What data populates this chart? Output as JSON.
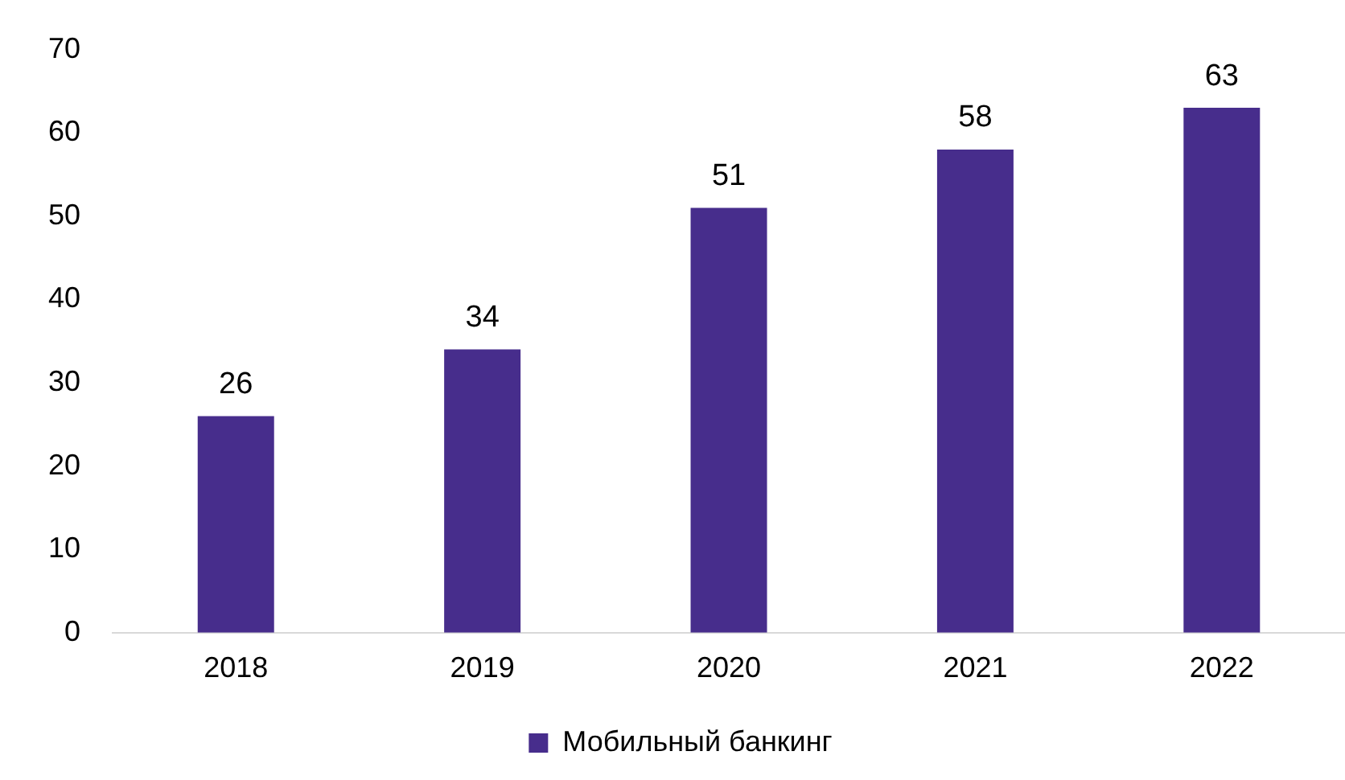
{
  "chart_data": {
    "type": "bar",
    "categories": [
      "2018",
      "2019",
      "2020",
      "2021",
      "2022"
    ],
    "series": [
      {
        "name": "Мобильный банкинг",
        "color": "#472d8c",
        "values": [
          26,
          34,
          51,
          58,
          63
        ]
      }
    ],
    "ylim": [
      0,
      70
    ],
    "yticks": [
      0,
      10,
      20,
      30,
      40,
      50,
      60,
      70
    ],
    "grid": false,
    "legend": "bottom",
    "data_labels": true
  }
}
